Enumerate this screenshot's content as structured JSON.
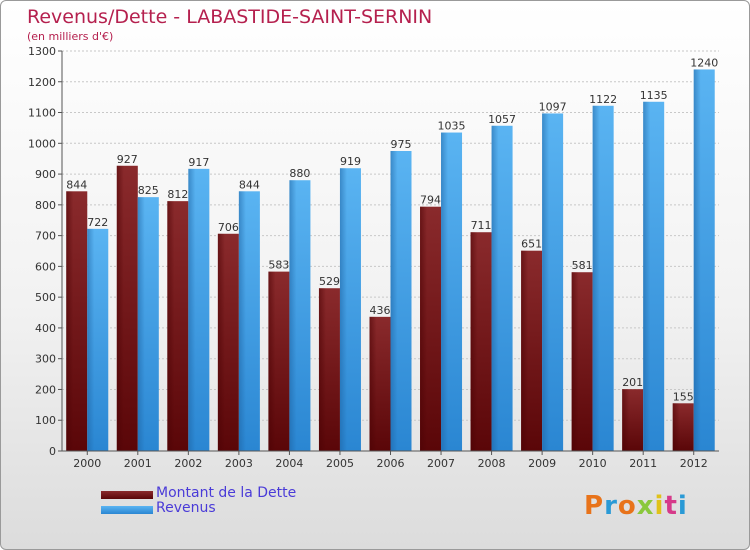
{
  "title": "Revenus/Dette - LABASTIDE-SAINT-SERNIN",
  "subtitle": "(en milliers d'€)",
  "logo": {
    "letters": [
      "P",
      "r",
      "o",
      "x",
      "i",
      "t",
      "i"
    ],
    "colors": [
      "#e8731a",
      "#2a9ad6",
      "#e8731a",
      "#8ac83c",
      "#e0c21a",
      "#d63a8a",
      "#2a9ad6"
    ]
  },
  "colors": {
    "dette": "#7a1416",
    "revenus": "#3a9ee8",
    "axis": "#555555",
    "grid": "#c8c8c8"
  },
  "chart_data": {
    "type": "bar",
    "title": "Revenus/Dette - LABASTIDE-SAINT-SERNIN",
    "ylabel": "(en milliers d'€)",
    "xlabel": "",
    "categories": [
      "2000",
      "2001",
      "2002",
      "2003",
      "2004",
      "2005",
      "2006",
      "2007",
      "2008",
      "2009",
      "2010",
      "2011",
      "2012"
    ],
    "series": [
      {
        "name": "Montant de la Dette",
        "values": [
          844,
          927,
          812,
          706,
          583,
          529,
          436,
          794,
          711,
          651,
          581,
          201,
          155
        ]
      },
      {
        "name": "Revenus",
        "values": [
          722,
          825,
          917,
          844,
          880,
          919,
          975,
          1035,
          1057,
          1097,
          1122,
          1135,
          1240
        ]
      }
    ],
    "ylim": [
      0,
      1300
    ],
    "yticks": [
      0,
      100,
      200,
      300,
      400,
      500,
      600,
      700,
      800,
      900,
      1000,
      1100,
      1200,
      1300
    ],
    "grid": true,
    "legend_position": "bottom-left"
  }
}
